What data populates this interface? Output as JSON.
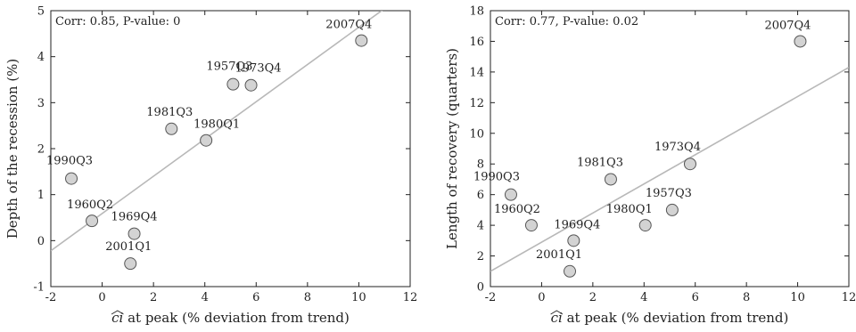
{
  "chart_data": [
    {
      "type": "scatter",
      "xlabel_math": "ci",
      "xlabel": "at peak (% deviation from trend)",
      "ylabel": "Depth of the recession (%)",
      "annotation": "Corr: 0.85, P-value: 0",
      "xlim": [
        -2,
        12
      ],
      "ylim": [
        -1,
        5
      ],
      "xticks": [
        -2,
        0,
        2,
        4,
        6,
        8,
        10,
        12
      ],
      "yticks": [
        -1,
        0,
        1,
        2,
        3,
        4,
        5
      ],
      "points": [
        {
          "label": "1990Q3",
          "x": -1.2,
          "y": 1.35
        },
        {
          "label": "1960Q2",
          "x": -0.4,
          "y": 0.43
        },
        {
          "label": "1969Q4",
          "x": 1.25,
          "y": 0.15
        },
        {
          "label": "2001Q1",
          "x": 1.1,
          "y": -0.5
        },
        {
          "label": "1981Q3",
          "x": 2.7,
          "y": 2.43
        },
        {
          "label": "1980Q1",
          "x": 4.05,
          "y": 2.18
        },
        {
          "label": "1957Q3",
          "x": 5.1,
          "y": 3.4
        },
        {
          "label": "1973Q4",
          "x": 5.8,
          "y": 3.38
        },
        {
          "label": "2007Q4",
          "x": 10.1,
          "y": 4.35
        }
      ],
      "fit_line": {
        "x": [
          -2,
          12
        ],
        "y": [
          -0.22,
          5.45
        ]
      }
    },
    {
      "type": "scatter",
      "xlabel_math": "ci",
      "xlabel": "at peak (% deviation from trend)",
      "ylabel": "Length of recovery (quarters)",
      "annotation": "Corr: 0.77, P-value: 0.02",
      "xlim": [
        -2,
        12
      ],
      "ylim": [
        0,
        18
      ],
      "xticks": [
        -2,
        0,
        2,
        4,
        6,
        8,
        10,
        12
      ],
      "yticks": [
        0,
        2,
        4,
        6,
        8,
        10,
        12,
        14,
        16,
        18
      ],
      "points": [
        {
          "label": "1990Q3",
          "x": -1.2,
          "y": 6
        },
        {
          "label": "1960Q2",
          "x": -0.4,
          "y": 4
        },
        {
          "label": "1969Q4",
          "x": 1.25,
          "y": 3
        },
        {
          "label": "2001Q1",
          "x": 1.1,
          "y": 1
        },
        {
          "label": "1981Q3",
          "x": 2.7,
          "y": 7
        },
        {
          "label": "1980Q1",
          "x": 4.05,
          "y": 4
        },
        {
          "label": "1957Q3",
          "x": 5.1,
          "y": 5
        },
        {
          "label": "1973Q4",
          "x": 5.8,
          "y": 8
        },
        {
          "label": "2007Q4",
          "x": 10.1,
          "y": 16
        }
      ],
      "fit_line": {
        "x": [
          -2,
          12
        ],
        "y": [
          1.0,
          14.3
        ]
      }
    }
  ],
  "colors": {
    "marker_fill": "#d3d3d3",
    "marker_stroke": "#555555",
    "fit_line": "#b8b8b8",
    "axis": "#222222"
  }
}
